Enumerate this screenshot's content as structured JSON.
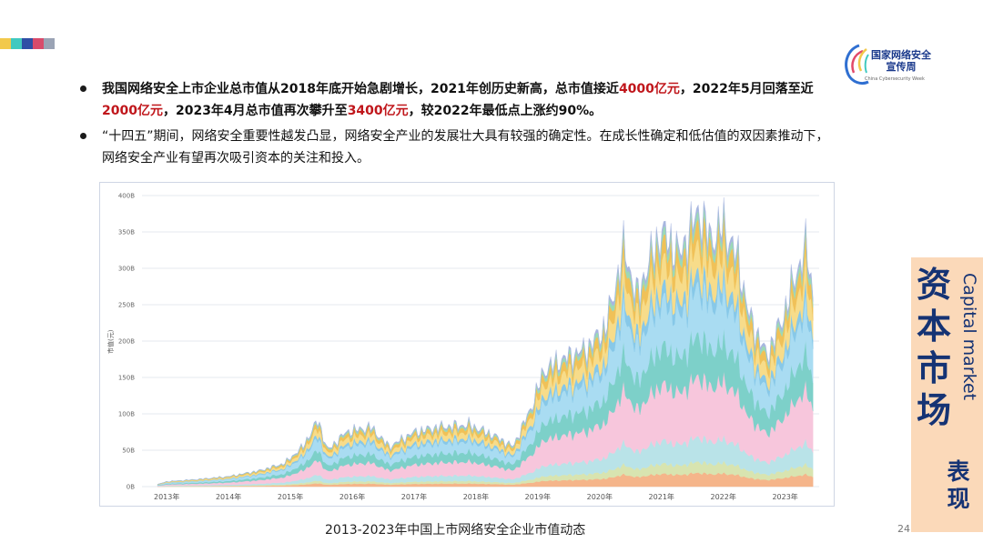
{
  "header": {
    "stripe_colors": [
      "#f2c94c",
      "#41c9c0",
      "#2f4fa5",
      "#d84b6b",
      "#9aa3b5"
    ]
  },
  "logo": {
    "title_line1": "国家网络安全",
    "title_line2": "宣传周",
    "subtitle": "China Cybersecurity Week"
  },
  "bullets": [
    {
      "segments": [
        {
          "text": "我国网络安全上市企业总市值从2018年底开始急剧增长，2021年创历史新高，总市值接近",
          "red": false
        },
        {
          "text": "4000亿元",
          "red": true
        },
        {
          "text": "，2022年5月回落至近",
          "red": false
        },
        {
          "text": "2000亿元",
          "red": true
        },
        {
          "text": "，2023年4月总市值再次攀升至",
          "red": false
        },
        {
          "text": "3400亿元",
          "red": true
        },
        {
          "text": "，较2022年最低点上涨约90%。",
          "red": false
        }
      ]
    },
    {
      "segments": [
        {
          "text": "“十四五”期间，网络安全重要性越发凸显，网络安全产业的发展壮大具有较强的确定性。在成长性确定和低估值的双因素推动下，网络安全产业有望再次吸引资本的关注和投入。",
          "red": false
        }
      ]
    }
  ],
  "chart_data": {
    "type": "area",
    "stacked": true,
    "ylabel": "市值(元)",
    "ylim": [
      0,
      400
    ],
    "y_ticks": [
      "0B",
      "50B",
      "100B",
      "150B",
      "200B",
      "250B",
      "300B",
      "350B",
      "400B"
    ],
    "x_ticks": [
      "2013年",
      "2014年",
      "2015年",
      "2016年",
      "2017年",
      "2018年",
      "2019年",
      "2020年",
      "2021年",
      "2022年",
      "2023年"
    ],
    "xlim": [
      2012.6,
      2023.55
    ],
    "grid": true,
    "total_approx": {
      "x": [
        2012.85,
        2013.0,
        2013.5,
        2014.0,
        2014.5,
        2014.9,
        2015.2,
        2015.45,
        2015.6,
        2015.9,
        2016.3,
        2016.6,
        2017.0,
        2017.4,
        2017.9,
        2018.3,
        2018.6,
        2018.9,
        2019.1,
        2019.4,
        2019.8,
        2020.1,
        2020.4,
        2020.6,
        2020.8,
        2021.0,
        2021.3,
        2021.6,
        2021.8,
        2022.0,
        2022.25,
        2022.4,
        2022.7,
        2022.95,
        2023.2,
        2023.35,
        2023.45
      ],
      "y": [
        3,
        7,
        10,
        14,
        22,
        32,
        55,
        92,
        50,
        75,
        82,
        55,
        75,
        82,
        85,
        70,
        55,
        110,
        160,
        175,
        190,
        220,
        330,
        260,
        310,
        350,
        320,
        380,
        340,
        360,
        310,
        240,
        180,
        230,
        300,
        330,
        265
      ]
    },
    "layers": [
      {
        "color": "#f5b58a",
        "share": 0.05
      },
      {
        "color": "#d8e4b0",
        "share": 0.04
      },
      {
        "color": "#b9e3e8",
        "share": 0.09
      },
      {
        "color": "#f7c6dc",
        "share": 0.22
      },
      {
        "color": "#7dd0c9",
        "share": 0.15
      },
      {
        "color": "#a9dcf2",
        "share": 0.18
      },
      {
        "color": "#87c8e8",
        "share": 0.05
      },
      {
        "color": "#f7dc8a",
        "share": 0.1
      },
      {
        "color": "#f0c158",
        "share": 0.07
      },
      {
        "color": "#9bd9b6",
        "share": 0.03
      },
      {
        "color": "#a7b6df",
        "share": 0.02
      }
    ]
  },
  "caption": "2013-2023年中国上市网络安全企业市值动态",
  "page_number": "24",
  "side": {
    "title": "资本市场",
    "english": "Capital market",
    "sub": "表现"
  }
}
